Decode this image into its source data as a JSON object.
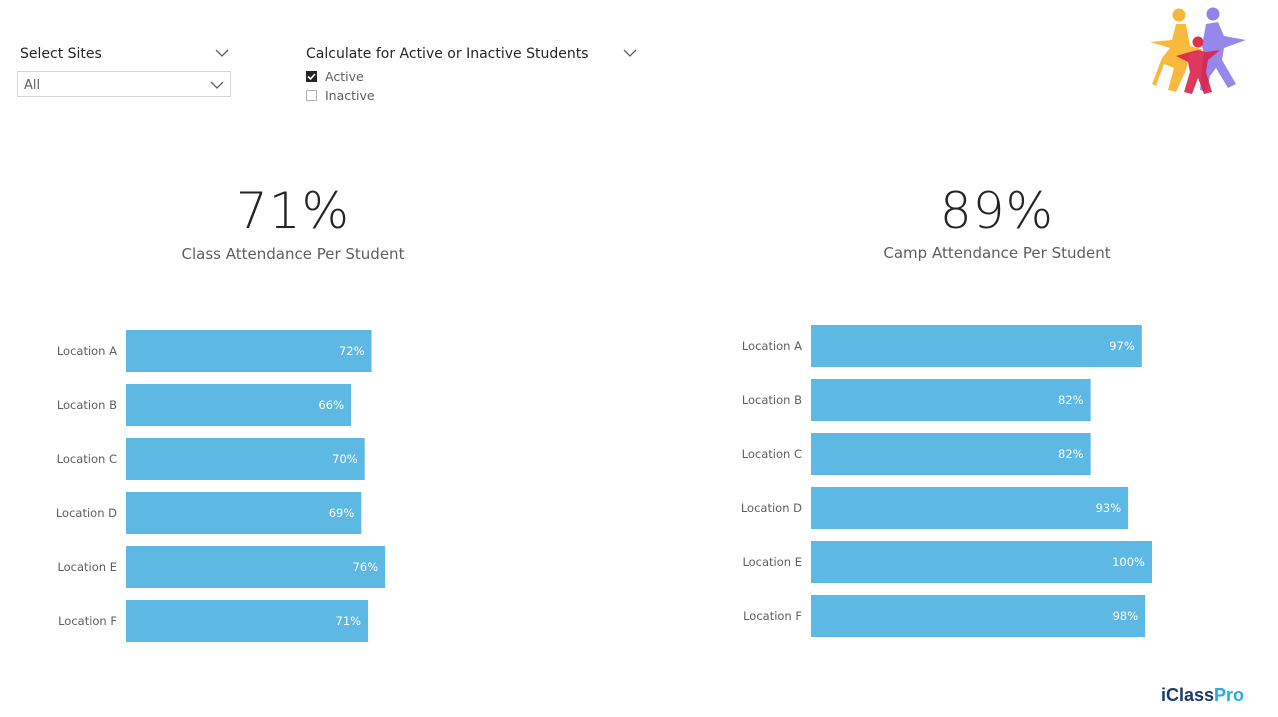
{
  "filters": {
    "sites": {
      "title": "Select Sites",
      "selected": "All"
    },
    "status": {
      "title": "Calculate for Active or Inactive Students",
      "options": [
        {
          "label": "Active",
          "checked": true
        },
        {
          "label": "Inactive",
          "checked": false
        }
      ]
    }
  },
  "kpis": {
    "class": {
      "value": "71%",
      "label": "Class Attendance Per Student"
    },
    "camp": {
      "value": "89%",
      "label": "Camp Attendance Per Student"
    }
  },
  "brand": {
    "name_prefix": "iClass",
    "name_suffix": "Pro",
    "prefix_color": "#1b3a6b",
    "suffix_color": "#29a9e0"
  },
  "colors": {
    "bar": "#5db8e3",
    "bar_label": "#ffffff"
  },
  "chart_data": [
    {
      "type": "bar",
      "orientation": "horizontal",
      "categories": [
        "Location A",
        "Location B",
        "Location C",
        "Location D",
        "Location E",
        "Location F"
      ],
      "values": [
        72,
        66,
        70,
        69,
        76,
        71
      ],
      "data_labels": [
        "72%",
        "66%",
        "70%",
        "69%",
        "76%",
        "71%"
      ],
      "xlim": [
        0,
        100
      ],
      "grid": false
    },
    {
      "type": "bar",
      "orientation": "horizontal",
      "categories": [
        "Location A",
        "Location B",
        "Location C",
        "Location D",
        "Location E",
        "Location F"
      ],
      "values": [
        97,
        82,
        82,
        93,
        100,
        98
      ],
      "data_labels": [
        "97%",
        "82%",
        "82%",
        "93%",
        "100%",
        "98%"
      ],
      "xlim": [
        0,
        100
      ],
      "grid": false
    }
  ]
}
